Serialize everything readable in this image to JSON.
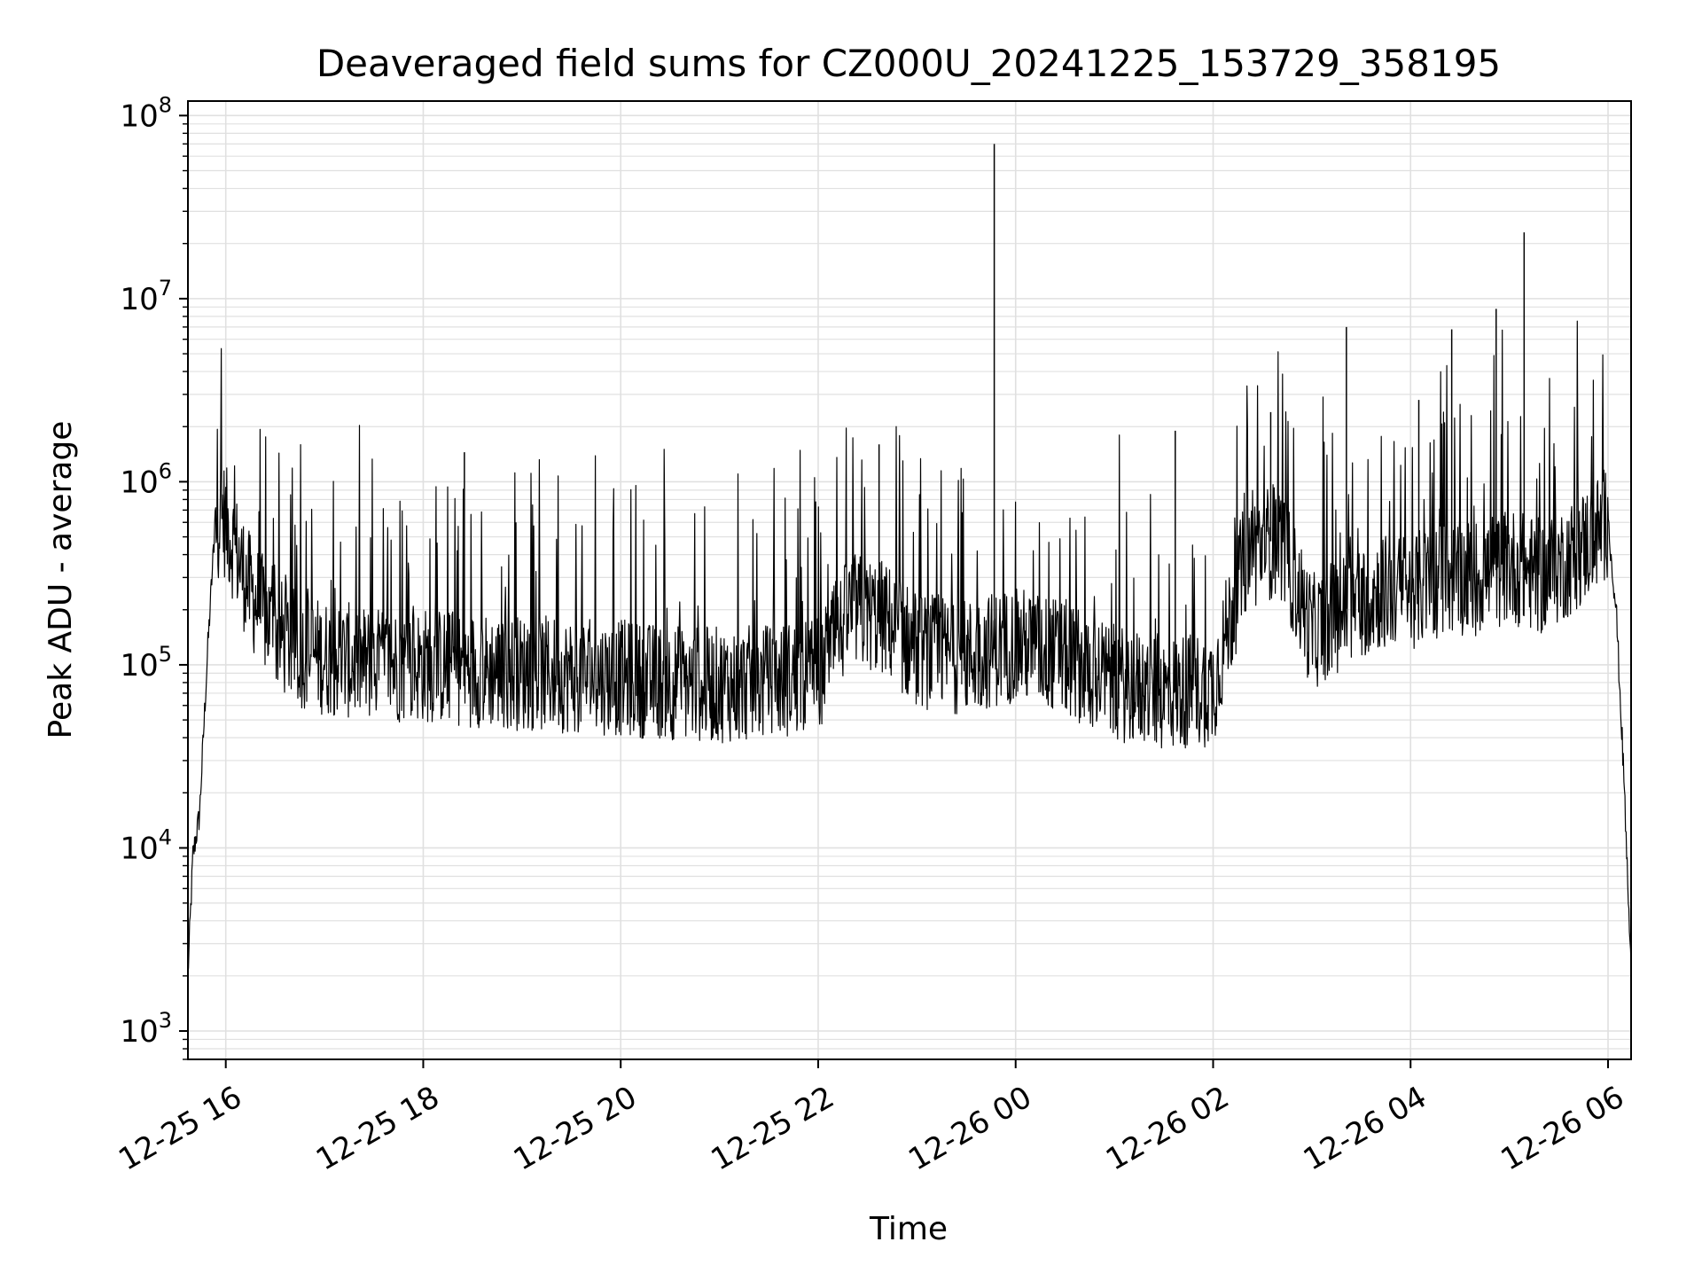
{
  "chart_data": {
    "type": "line",
    "title": "Deaveraged field sums for CZ000U_20241225_153729_358195",
    "xlabel": "Time",
    "ylabel": "Peak ADU - average",
    "yscale": "log",
    "ylim": [
      700,
      120000000
    ],
    "xlim": [
      "2024-12-25 15:37",
      "2024-12-26 06:14"
    ],
    "grid": true,
    "line_color": "#000000",
    "grid_color": "#e0e0e0",
    "x_ticks": [
      {
        "value": "2024-12-25 16:00",
        "label": "12-25 16"
      },
      {
        "value": "2024-12-25 18:00",
        "label": "12-25 18"
      },
      {
        "value": "2024-12-25 20:00",
        "label": "12-25 20"
      },
      {
        "value": "2024-12-25 22:00",
        "label": "12-25 22"
      },
      {
        "value": "2024-12-26 00:00",
        "label": "12-26 00"
      },
      {
        "value": "2024-12-26 02:00",
        "label": "12-26 02"
      },
      {
        "value": "2024-12-26 04:00",
        "label": "12-26 04"
      },
      {
        "value": "2024-12-26 06:00",
        "label": "12-26 06"
      }
    ],
    "y_ticks": [
      {
        "value": 1000,
        "base": "10",
        "exp": "3"
      },
      {
        "value": 10000,
        "base": "10",
        "exp": "4"
      },
      {
        "value": 100000,
        "base": "10",
        "exp": "5"
      },
      {
        "value": 1000000,
        "base": "10",
        "exp": "6"
      },
      {
        "value": 10000000,
        "base": "10",
        "exp": "7"
      },
      {
        "value": 100000000,
        "base": "10",
        "exp": "8"
      }
    ],
    "series": [
      {
        "x": [
          "2024-12-25 15:37",
          "2024-12-25 15:40",
          "2024-12-25 15:44",
          "2024-12-25 15:49",
          "2024-12-25 15:53",
          "2024-12-25 15:57",
          "2024-12-25 16:05",
          "2024-12-25 16:15",
          "2024-12-25 16:30",
          "2024-12-25 16:45",
          "2024-12-25 17:00",
          "2024-12-25 17:30",
          "2024-12-25 18:00",
          "2024-12-25 18:30",
          "2024-12-25 19:00",
          "2024-12-25 19:30",
          "2024-12-25 20:00",
          "2024-12-25 20:30",
          "2024-12-25 21:00",
          "2024-12-25 21:30",
          "2024-12-25 22:00",
          "2024-12-25 22:20",
          "2024-12-25 22:40",
          "2024-12-25 23:00",
          "2024-12-25 23:30",
          "2024-12-25 23:44",
          "2024-12-26 00:00",
          "2024-12-26 00:30",
          "2024-12-26 01:00",
          "2024-12-26 01:30",
          "2024-12-26 02:00",
          "2024-12-26 02:20",
          "2024-12-26 02:40",
          "2024-12-26 03:00",
          "2024-12-26 03:20",
          "2024-12-26 03:40",
          "2024-12-26 04:00",
          "2024-12-26 04:20",
          "2024-12-26 04:40",
          "2024-12-26 05:00",
          "2024-12-26 05:20",
          "2024-12-26 05:40",
          "2024-12-26 06:00",
          "2024-12-26 06:05",
          "2024-12-26 06:10",
          "2024-12-26 06:14"
        ],
        "y": [
          2000,
          9000,
          15000,
          120000,
          500000,
          700000,
          450000,
          250000,
          150000,
          120000,
          110000,
          100000,
          100000,
          95000,
          90000,
          88000,
          85000,
          80000,
          78000,
          80000,
          90000,
          200000,
          180000,
          120000,
          110000,
          120000,
          130000,
          110000,
          80000,
          70000,
          75000,
          400000,
          500000,
          150000,
          200000,
          250000,
          250000,
          300000,
          300000,
          350000,
          300000,
          400000,
          600000,
          200000,
          20000,
          2000
        ]
      }
    ],
    "spikes": [
      {
        "x": "2024-12-25 23:47",
        "y": 70000000
      },
      {
        "x": "2024-12-26 05:09",
        "y": 23000000
      },
      {
        "x": "2024-12-26 04:52",
        "y": 8800000
      },
      {
        "x": "2024-12-26 03:21",
        "y": 7000000
      },
      {
        "x": "2024-12-26 04:25",
        "y": 6800000
      },
      {
        "x": "2024-12-26 02:35",
        "y": 2400000
      },
      {
        "x": "2024-12-26 04:05",
        "y": 2800000
      },
      {
        "x": "2024-12-26 01:37",
        "y": 1900000
      },
      {
        "x": "2024-12-25 22:37",
        "y": 1600000
      },
      {
        "x": "2024-12-25 18:25",
        "y": 1450000
      }
    ]
  }
}
